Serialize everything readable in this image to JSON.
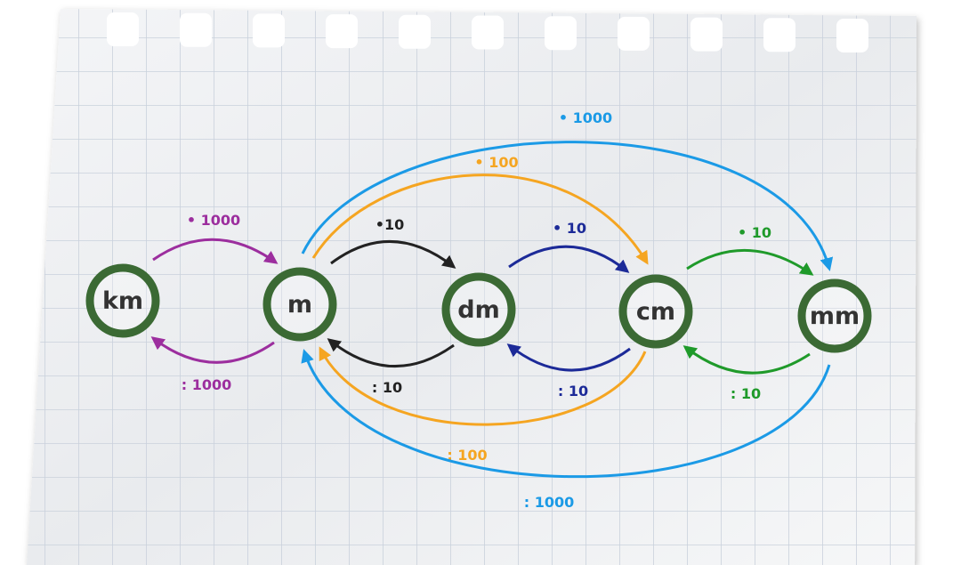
{
  "colors": {
    "node_ring": "#3b6a34",
    "purple": "#9c2e9e",
    "black": "#222222",
    "darkblue": "#1c2a98",
    "green": "#1f9a2a",
    "orange": "#f5a521",
    "lightblue": "#1b9ae6",
    "grid": "#c9d1dc"
  },
  "nodes": [
    {
      "id": "km",
      "label": "km"
    },
    {
      "id": "m",
      "label": "m"
    },
    {
      "id": "dm",
      "label": "dm"
    },
    {
      "id": "cm",
      "label": "cm"
    },
    {
      "id": "mm",
      "label": "mm"
    }
  ],
  "edges": [
    {
      "id": "km-m",
      "from": "km",
      "to": "m",
      "label": "• 1000",
      "color": "purple"
    },
    {
      "id": "m-km",
      "from": "m",
      "to": "km",
      "label": ": 1000",
      "color": "purple"
    },
    {
      "id": "m-dm",
      "from": "m",
      "to": "dm",
      "label": "•10",
      "color": "black"
    },
    {
      "id": "dm-m",
      "from": "dm",
      "to": "m",
      "label": ": 10",
      "color": "black"
    },
    {
      "id": "dm-cm",
      "from": "dm",
      "to": "cm",
      "label": "• 10",
      "color": "darkblue"
    },
    {
      "id": "cm-dm",
      "from": "cm",
      "to": "dm",
      "label": ": 10",
      "color": "darkblue"
    },
    {
      "id": "cm-mm",
      "from": "cm",
      "to": "mm",
      "label": "• 10",
      "color": "green"
    },
    {
      "id": "mm-cm",
      "from": "mm",
      "to": "cm",
      "label": ": 10",
      "color": "green"
    },
    {
      "id": "m-cm",
      "from": "m",
      "to": "cm",
      "label": "• 100",
      "color": "orange"
    },
    {
      "id": "cm-m",
      "from": "cm",
      "to": "m",
      "label": ": 100",
      "color": "orange"
    },
    {
      "id": "m-mm",
      "from": "m",
      "to": "mm",
      "label": "• 1000",
      "color": "lightblue"
    },
    {
      "id": "mm-m",
      "from": "mm",
      "to": "m",
      "label": ": 1000",
      "color": "lightblue"
    }
  ]
}
